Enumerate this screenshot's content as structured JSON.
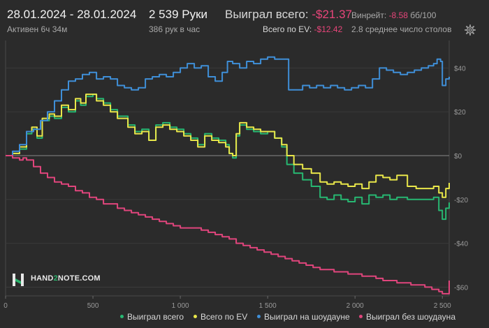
{
  "header": {
    "date_range": "28.01.2024 - 28.01.2024",
    "active_time": "Активен 6ч 34м",
    "hands": "2 539 Руки",
    "hands_per_hour": "386 рук в час",
    "won_total_label": "Выиграл всего:",
    "won_total_value": "-$21.37",
    "ev_total_label": "Всего по EV:",
    "ev_total_value": "-$12.42",
    "winrate_label": "Винрейт:",
    "winrate_value": "-8.58",
    "winrate_unit": "бб/100",
    "avg_tables": "2.8 среднее число столов",
    "settings_icon": "gear-icon"
  },
  "logo": {
    "text_before": "HAND",
    "text_accent": "2",
    "text_after": "NOTE.COM",
    "accent_color": "#29b36b"
  },
  "colors": {
    "won_total": "#27b872",
    "ev_total": "#e9e74a",
    "showdown": "#3f8fd8",
    "non_showdown": "#e0457c",
    "negative": "#e8457a"
  },
  "legend": [
    {
      "label": "Выиграл всего",
      "color": "#27b872"
    },
    {
      "label": "Всего по EV",
      "color": "#e9e74a"
    },
    {
      "label": "Выиграл на шоудауне",
      "color": "#3f8fd8"
    },
    {
      "label": "Выиграл без шоудауна",
      "color": "#e0457c"
    }
  ],
  "chart_data": {
    "type": "line",
    "xlim": [
      0,
      2539
    ],
    "ylim": [
      -64,
      50
    ],
    "x_ticks": [
      0,
      500,
      1000,
      1500,
      2000,
      2500
    ],
    "x_tick_labels": [
      "0",
      "500",
      "1 000",
      "1 500",
      "2 000",
      "2 500"
    ],
    "y_ticks": [
      40,
      20,
      0,
      -20,
      -40,
      -60
    ],
    "y_tick_labels": [
      "$40",
      "$20",
      "$0",
      "-$20",
      "-$40",
      "-$60"
    ],
    "grid": true,
    "legend_position": "bottom",
    "series": [
      {
        "name": "Выиграл всего",
        "color": "#27b872",
        "points": [
          [
            0,
            0
          ],
          [
            40,
            1
          ],
          [
            80,
            3
          ],
          [
            120,
            10
          ],
          [
            150,
            12
          ],
          [
            180,
            8
          ],
          [
            210,
            16
          ],
          [
            250,
            18
          ],
          [
            280,
            17
          ],
          [
            320,
            22
          ],
          [
            360,
            20
          ],
          [
            400,
            25
          ],
          [
            430,
            23
          ],
          [
            460,
            27
          ],
          [
            500,
            28
          ],
          [
            520,
            26
          ],
          [
            560,
            24
          ],
          [
            600,
            21
          ],
          [
            640,
            18
          ],
          [
            700,
            14
          ],
          [
            740,
            11
          ],
          [
            780,
            12
          ],
          [
            820,
            7
          ],
          [
            860,
            14
          ],
          [
            900,
            15
          ],
          [
            940,
            13
          ],
          [
            980,
            12
          ],
          [
            1020,
            10
          ],
          [
            1060,
            8
          ],
          [
            1100,
            5
          ],
          [
            1140,
            10
          ],
          [
            1180,
            8
          ],
          [
            1220,
            7
          ],
          [
            1260,
            5
          ],
          [
            1280,
            1
          ],
          [
            1300,
            -1
          ],
          [
            1320,
            9
          ],
          [
            1340,
            14
          ],
          [
            1380,
            12
          ],
          [
            1420,
            11
          ],
          [
            1460,
            10
          ],
          [
            1500,
            11
          ],
          [
            1540,
            8
          ],
          [
            1580,
            4
          ],
          [
            1610,
            -4
          ],
          [
            1650,
            -8
          ],
          [
            1700,
            -11
          ],
          [
            1750,
            -14
          ],
          [
            1800,
            -19
          ],
          [
            1840,
            -20
          ],
          [
            1880,
            -18
          ],
          [
            1920,
            -20
          ],
          [
            1960,
            -21
          ],
          [
            2000,
            -19
          ],
          [
            2040,
            -22
          ],
          [
            2080,
            -18
          ],
          [
            2120,
            -19
          ],
          [
            2160,
            -18
          ],
          [
            2200,
            -20
          ],
          [
            2240,
            -19
          ],
          [
            2300,
            -20
          ],
          [
            2350,
            -20
          ],
          [
            2400,
            -20
          ],
          [
            2450,
            -19
          ],
          [
            2480,
            -25
          ],
          [
            2500,
            -29
          ],
          [
            2520,
            -24
          ],
          [
            2539,
            -21.37
          ]
        ]
      },
      {
        "name": "Всего по EV",
        "color": "#e9e74a",
        "points": [
          [
            0,
            0
          ],
          [
            40,
            1
          ],
          [
            80,
            4
          ],
          [
            120,
            11
          ],
          [
            150,
            13
          ],
          [
            180,
            9
          ],
          [
            210,
            17
          ],
          [
            250,
            19
          ],
          [
            280,
            18
          ],
          [
            320,
            23
          ],
          [
            360,
            21
          ],
          [
            400,
            26
          ],
          [
            430,
            24
          ],
          [
            460,
            28
          ],
          [
            500,
            28
          ],
          [
            520,
            25
          ],
          [
            560,
            23
          ],
          [
            600,
            20
          ],
          [
            640,
            17
          ],
          [
            700,
            13
          ],
          [
            740,
            10
          ],
          [
            780,
            11
          ],
          [
            820,
            7
          ],
          [
            860,
            13
          ],
          [
            900,
            14
          ],
          [
            940,
            12
          ],
          [
            980,
            11
          ],
          [
            1020,
            9
          ],
          [
            1060,
            7
          ],
          [
            1100,
            4
          ],
          [
            1140,
            9
          ],
          [
            1180,
            7
          ],
          [
            1220,
            6
          ],
          [
            1260,
            4
          ],
          [
            1280,
            1
          ],
          [
            1300,
            0
          ],
          [
            1320,
            10
          ],
          [
            1340,
            15
          ],
          [
            1380,
            13
          ],
          [
            1420,
            12
          ],
          [
            1460,
            11
          ],
          [
            1500,
            11
          ],
          [
            1540,
            8
          ],
          [
            1580,
            5
          ],
          [
            1610,
            0
          ],
          [
            1650,
            -4
          ],
          [
            1700,
            -6
          ],
          [
            1750,
            -8
          ],
          [
            1800,
            -12
          ],
          [
            1840,
            -13
          ],
          [
            1880,
            -12
          ],
          [
            1920,
            -13
          ],
          [
            1960,
            -14
          ],
          [
            2000,
            -13
          ],
          [
            2040,
            -15
          ],
          [
            2080,
            -12
          ],
          [
            2120,
            -9
          ],
          [
            2160,
            -10
          ],
          [
            2200,
            -11
          ],
          [
            2240,
            -9
          ],
          [
            2300,
            -14
          ],
          [
            2350,
            -15
          ],
          [
            2400,
            -15
          ],
          [
            2450,
            -14
          ],
          [
            2480,
            -17
          ],
          [
            2500,
            -19
          ],
          [
            2520,
            -15
          ],
          [
            2539,
            -12.42
          ]
        ]
      },
      {
        "name": "Выиграл на шоудауне",
        "color": "#3f8fd8",
        "points": [
          [
            0,
            0
          ],
          [
            40,
            2
          ],
          [
            80,
            5
          ],
          [
            120,
            11
          ],
          [
            160,
            12
          ],
          [
            200,
            16
          ],
          [
            240,
            20
          ],
          [
            280,
            25
          ],
          [
            320,
            30
          ],
          [
            360,
            34
          ],
          [
            400,
            35
          ],
          [
            440,
            37
          ],
          [
            480,
            38
          ],
          [
            520,
            35
          ],
          [
            560,
            36
          ],
          [
            600,
            35
          ],
          [
            640,
            32
          ],
          [
            680,
            31
          ],
          [
            720,
            30
          ],
          [
            760,
            31
          ],
          [
            800,
            35
          ],
          [
            840,
            36
          ],
          [
            880,
            37
          ],
          [
            920,
            36
          ],
          [
            960,
            38
          ],
          [
            1000,
            40
          ],
          [
            1040,
            42
          ],
          [
            1080,
            40
          ],
          [
            1120,
            41
          ],
          [
            1160,
            36
          ],
          [
            1200,
            34
          ],
          [
            1240,
            38
          ],
          [
            1270,
            43
          ],
          [
            1300,
            42
          ],
          [
            1340,
            40
          ],
          [
            1380,
            43
          ],
          [
            1420,
            42
          ],
          [
            1460,
            44
          ],
          [
            1500,
            45
          ],
          [
            1540,
            44
          ],
          [
            1580,
            44
          ],
          [
            1620,
            30
          ],
          [
            1660,
            30
          ],
          [
            1700,
            32
          ],
          [
            1740,
            31
          ],
          [
            1780,
            32
          ],
          [
            1820,
            31
          ],
          [
            1860,
            32
          ],
          [
            1900,
            31
          ],
          [
            1940,
            30
          ],
          [
            1980,
            31
          ],
          [
            2020,
            32
          ],
          [
            2060,
            31
          ],
          [
            2100,
            35
          ],
          [
            2140,
            40
          ],
          [
            2180,
            39
          ],
          [
            2220,
            38
          ],
          [
            2260,
            37
          ],
          [
            2300,
            38
          ],
          [
            2340,
            39
          ],
          [
            2380,
            40
          ],
          [
            2420,
            41
          ],
          [
            2450,
            42
          ],
          [
            2470,
            44
          ],
          [
            2490,
            43
          ],
          [
            2500,
            32
          ],
          [
            2520,
            35
          ],
          [
            2539,
            36
          ]
        ]
      },
      {
        "name": "Выиграл без шоудауна",
        "color": "#e0457c",
        "points": [
          [
            0,
            0
          ],
          [
            40,
            -1
          ],
          [
            80,
            -2
          ],
          [
            100,
            -1
          ],
          [
            120,
            -2
          ],
          [
            160,
            -5
          ],
          [
            200,
            -8
          ],
          [
            240,
            -10
          ],
          [
            280,
            -12
          ],
          [
            320,
            -13
          ],
          [
            360,
            -14
          ],
          [
            400,
            -16
          ],
          [
            440,
            -17
          ],
          [
            480,
            -19
          ],
          [
            520,
            -20
          ],
          [
            560,
            -22
          ],
          [
            600,
            -22
          ],
          [
            640,
            -24
          ],
          [
            680,
            -25
          ],
          [
            720,
            -26
          ],
          [
            760,
            -27
          ],
          [
            800,
            -28
          ],
          [
            840,
            -29
          ],
          [
            880,
            -30
          ],
          [
            920,
            -31
          ],
          [
            960,
            -32
          ],
          [
            1000,
            -33
          ],
          [
            1040,
            -33
          ],
          [
            1080,
            -33
          ],
          [
            1120,
            -34
          ],
          [
            1160,
            -35
          ],
          [
            1200,
            -36
          ],
          [
            1240,
            -37
          ],
          [
            1280,
            -38
          ],
          [
            1320,
            -40
          ],
          [
            1360,
            -41
          ],
          [
            1400,
            -42
          ],
          [
            1440,
            -43
          ],
          [
            1480,
            -44
          ],
          [
            1520,
            -45
          ],
          [
            1560,
            -46
          ],
          [
            1600,
            -47
          ],
          [
            1640,
            -48
          ],
          [
            1680,
            -49
          ],
          [
            1720,
            -50
          ],
          [
            1760,
            -51
          ],
          [
            1800,
            -52
          ],
          [
            1840,
            -52
          ],
          [
            1880,
            -53
          ],
          [
            1920,
            -53
          ],
          [
            1960,
            -54
          ],
          [
            2000,
            -54
          ],
          [
            2040,
            -55
          ],
          [
            2080,
            -55
          ],
          [
            2120,
            -56
          ],
          [
            2160,
            -57
          ],
          [
            2200,
            -57
          ],
          [
            2240,
            -58
          ],
          [
            2280,
            -58
          ],
          [
            2320,
            -59
          ],
          [
            2360,
            -59
          ],
          [
            2400,
            -60
          ],
          [
            2440,
            -61
          ],
          [
            2480,
            -62
          ],
          [
            2500,
            -63
          ],
          [
            2520,
            -63
          ],
          [
            2539,
            -57
          ]
        ]
      }
    ]
  }
}
